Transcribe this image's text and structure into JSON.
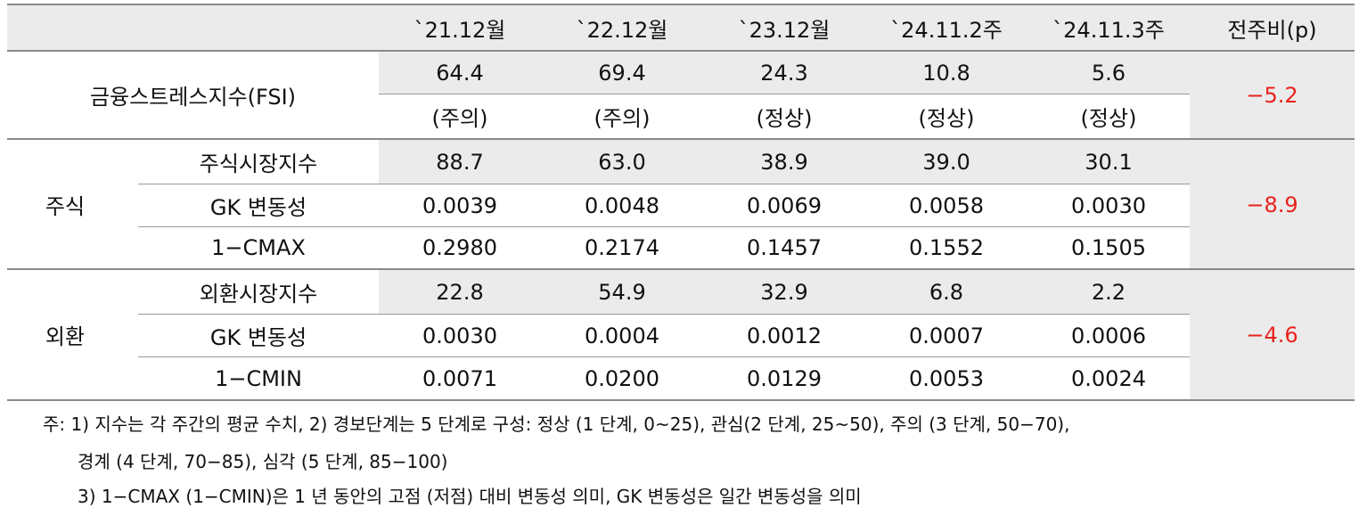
{
  "header": {
    "cols": [
      "`21.12월",
      "`22.12월",
      "`23.12월",
      "`24.11.2주",
      "`24.11.3주",
      "전주비(p)"
    ]
  },
  "fsi": {
    "label": "금융스트레스지수(FSI)",
    "values": [
      "64.4",
      "69.4",
      "24.3",
      "10.8",
      "5.6"
    ],
    "status": [
      "(주의)",
      "(주의)",
      "(정상)",
      "(정상)",
      "(정상)"
    ],
    "change": "−5.2"
  },
  "stock": {
    "group": "주식",
    "change": "−8.9",
    "rows": [
      {
        "label": "주식시장지수",
        "values": [
          "88.7",
          "63.0",
          "38.9",
          "39.0",
          "30.1"
        ]
      },
      {
        "label": "GK 변동성",
        "values": [
          "0.0039",
          "0.0048",
          "0.0069",
          "0.0058",
          "0.0030"
        ]
      },
      {
        "label": "1−CMAX",
        "values": [
          "0.2980",
          "0.2174",
          "0.1457",
          "0.1552",
          "0.1505"
        ]
      }
    ]
  },
  "fx": {
    "group": "외환",
    "change": "−4.6",
    "rows": [
      {
        "label": "외환시장지수",
        "values": [
          "22.8",
          "54.9",
          "32.9",
          "6.8",
          "2.2"
        ]
      },
      {
        "label": "GK 변동성",
        "values": [
          "0.0030",
          "0.0004",
          "0.0012",
          "0.0007",
          "0.0006"
        ]
      },
      {
        "label": "1−CMIN",
        "values": [
          "0.0071",
          "0.0200",
          "0.0129",
          "0.0053",
          "0.0024"
        ]
      }
    ]
  },
  "notes": {
    "line1": "주: 1) 지수는 각 주간의 평균 수치, 2) 경보단계는 5 단계로 구성: 정상 (1 단계, 0~25), 관심(2 단계, 25~50), 주의 (3 단계, 50−70),",
    "line2": "경계 (4 단계, 70−85), 심각 (5 단계, 85−100)",
    "line3": "3) 1−CMAX (1−CMIN)은 1 년 동안의 고점 (저점) 대비 변동성 의미, GK 변동성은 일간 변동성을 의미"
  }
}
